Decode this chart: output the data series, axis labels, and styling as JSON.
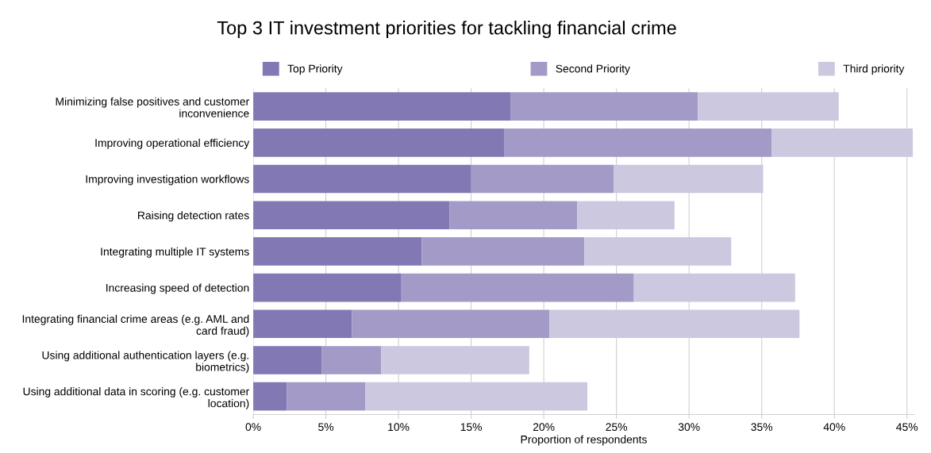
{
  "chart_data": {
    "type": "bar",
    "title": "Top 3 IT investment priorities for tackling financial crime",
    "orientation": "horizontal",
    "stacked": true,
    "xlabel": "Proportion of respondents",
    "categories": [
      "Minimizing false positives and customer inconvenience",
      "Improving operational efficiency",
      "Improving investigation workflows",
      "Raising detection rates",
      "Integrating multiple IT systems",
      "Increasing speed of detection",
      "Integrating financial crime areas (e.g. AML and card fraud)",
      "Using additional authentication layers (e.g. biometrics)",
      "Using additional data in scoring (e.g. customer location)"
    ],
    "series": [
      {
        "name": "Top Priority",
        "color": "#8278b4",
        "values": [
          17.7,
          17.3,
          15.0,
          13.5,
          11.6,
          10.2,
          6.8,
          4.7,
          2.3
        ]
      },
      {
        "name": "Second Priority",
        "color": "#a39ac7",
        "values": [
          12.9,
          18.4,
          9.8,
          8.8,
          11.2,
          16.0,
          13.6,
          4.1,
          5.4
        ]
      },
      {
        "name": "Third priority",
        "color": "#ccc8e0",
        "values": [
          9.7,
          9.7,
          10.3,
          6.7,
          10.1,
          11.1,
          17.2,
          10.2,
          15.3
        ]
      }
    ],
    "xlim": [
      0,
      45.5
    ],
    "xticks": [
      {
        "value": 0,
        "label": "0%"
      },
      {
        "value": 5,
        "label": "5%"
      },
      {
        "value": 10,
        "label": "10%"
      },
      {
        "value": 15,
        "label": "15%"
      },
      {
        "value": 20,
        "label": "20%"
      },
      {
        "value": 25,
        "label": "25%"
      },
      {
        "value": 30,
        "label": "30%"
      },
      {
        "value": 35,
        "label": "35%"
      },
      {
        "value": 40,
        "label": "40%"
      },
      {
        "value": 45,
        "label": "45%"
      }
    ],
    "grid": "x",
    "legend": "top"
  }
}
